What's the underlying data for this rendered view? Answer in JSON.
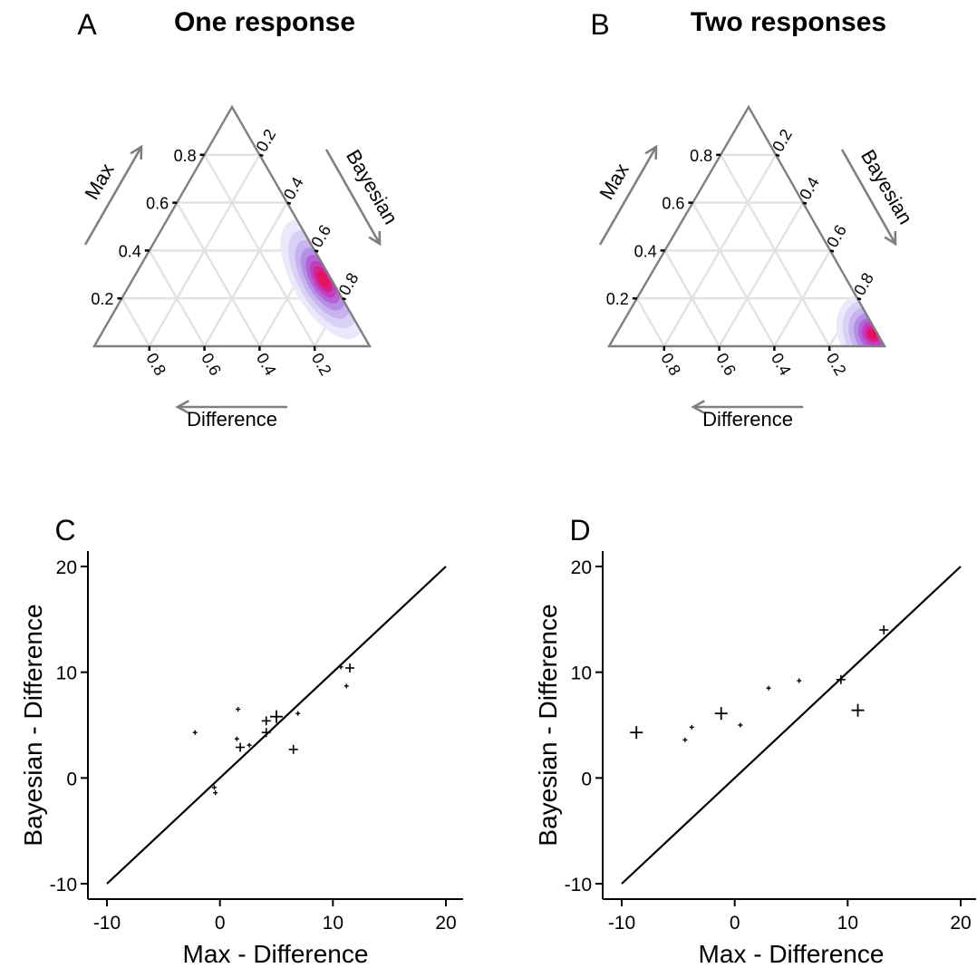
{
  "chart_data": [
    {
      "type": "ternary-density",
      "panel_label": "A",
      "title": "One response",
      "axes": {
        "max": "Max",
        "bayesian": "Bayesian",
        "difference": "Difference"
      },
      "tick_values": [
        0.2,
        0.4,
        0.6,
        0.8
      ],
      "tick_labels": [
        "0.2",
        "0.4",
        "0.6",
        "0.8"
      ],
      "grid": true,
      "density": {
        "peak": {
          "max": 0.28,
          "bayesian": 0.69,
          "difference": 0.03
        },
        "levels": [
          {
            "spread": 0.22,
            "color": "#ece8fb"
          },
          {
            "spread": 0.18,
            "color": "#d9d0f6"
          },
          {
            "spread": 0.145,
            "color": "#c7b4ef"
          },
          {
            "spread": 0.115,
            "color": "#b58fe6"
          },
          {
            "spread": 0.09,
            "color": "#b462d6"
          },
          {
            "spread": 0.068,
            "color": "#c13fbd"
          },
          {
            "spread": 0.048,
            "color": "#d7208f"
          },
          {
            "spread": 0.03,
            "color": "#e6105d"
          }
        ],
        "stretch": 2.2
      }
    },
    {
      "type": "ternary-density",
      "panel_label": "B",
      "title": "Two responses",
      "axes": {
        "max": "Max",
        "bayesian": "Bayesian",
        "difference": "Difference"
      },
      "tick_values": [
        0.2,
        0.4,
        0.6,
        0.8
      ],
      "tick_labels": [
        "0.2",
        "0.4",
        "0.6",
        "0.8"
      ],
      "grid": true,
      "density": {
        "peak": {
          "max": 0.05,
          "bayesian": 0.93,
          "difference": 0.02
        },
        "levels": [
          {
            "spread": 0.24,
            "color": "#ece8fb"
          },
          {
            "spread": 0.2,
            "color": "#d9d0f6"
          },
          {
            "spread": 0.16,
            "color": "#c7b4ef"
          },
          {
            "spread": 0.125,
            "color": "#b58fe6"
          },
          {
            "spread": 0.095,
            "color": "#b462d6"
          },
          {
            "spread": 0.07,
            "color": "#c13fbd"
          },
          {
            "spread": 0.048,
            "color": "#d7208f"
          },
          {
            "spread": 0.028,
            "color": "#e6105d"
          }
        ],
        "stretch": 1.3
      }
    },
    {
      "type": "scatter",
      "panel_label": "C",
      "xlabel": "Max - Difference",
      "ylabel": "Bayesian - Difference",
      "xlim": [
        -11.6,
        21.6
      ],
      "ylim": [
        -11.6,
        21.6
      ],
      "xticks": [
        -10,
        0,
        10,
        20
      ],
      "yticks": [
        -10,
        0,
        10,
        20
      ],
      "tick_labels": [
        "-10",
        "0",
        "10",
        "20"
      ],
      "identity_line": {
        "from": [
          -10,
          -10
        ],
        "to": [
          20,
          20
        ]
      },
      "marker": "+",
      "points": [
        {
          "x": -2.2,
          "y": 4.3,
          "size": "small"
        },
        {
          "x": 1.6,
          "y": 6.5,
          "size": "small"
        },
        {
          "x": 1.5,
          "y": 3.7,
          "size": "small"
        },
        {
          "x": 1.8,
          "y": 2.9,
          "size": "medium"
        },
        {
          "x": 2.6,
          "y": 3.1,
          "size": "small"
        },
        {
          "x": 4.1,
          "y": 5.4,
          "size": "medium"
        },
        {
          "x": 4.1,
          "y": 4.3,
          "size": "medium"
        },
        {
          "x": 5.0,
          "y": 5.8,
          "size": "large"
        },
        {
          "x": 6.9,
          "y": 6.1,
          "size": "small"
        },
        {
          "x": 6.5,
          "y": 2.7,
          "size": "medium"
        },
        {
          "x": -0.5,
          "y": -0.9,
          "size": "small"
        },
        {
          "x": -0.4,
          "y": -1.4,
          "size": "small"
        },
        {
          "x": 10.7,
          "y": 10.5,
          "size": "small"
        },
        {
          "x": 11.5,
          "y": 10.4,
          "size": "medium"
        },
        {
          "x": 11.2,
          "y": 8.7,
          "size": "small"
        }
      ]
    },
    {
      "type": "scatter",
      "panel_label": "D",
      "xlabel": "Max - Difference",
      "ylabel": "Bayesian - Difference",
      "xlim": [
        -11.6,
        21.6
      ],
      "ylim": [
        -11.6,
        21.6
      ],
      "xticks": [
        -10,
        0,
        10,
        20
      ],
      "yticks": [
        -10,
        0,
        10,
        20
      ],
      "tick_labels": [
        "-10",
        "0",
        "10",
        "20"
      ],
      "identity_line": {
        "from": [
          -10,
          -10
        ],
        "to": [
          20,
          20
        ]
      },
      "marker": "+",
      "points": [
        {
          "x": -8.7,
          "y": 4.3,
          "size": "large"
        },
        {
          "x": -4.4,
          "y": 3.6,
          "size": "small"
        },
        {
          "x": -3.8,
          "y": 4.8,
          "size": "small"
        },
        {
          "x": -1.2,
          "y": 6.1,
          "size": "large"
        },
        {
          "x": 0.5,
          "y": 5.0,
          "size": "small"
        },
        {
          "x": 3.0,
          "y": 8.5,
          "size": "small"
        },
        {
          "x": 5.7,
          "y": 9.2,
          "size": "small"
        },
        {
          "x": 9.4,
          "y": 9.3,
          "size": "medium"
        },
        {
          "x": 10.9,
          "y": 6.4,
          "size": "large"
        },
        {
          "x": 13.2,
          "y": 14.0,
          "size": "medium"
        }
      ]
    }
  ],
  "colors": {
    "grid": "#e2e2e2",
    "triangle": "#7f7f7f",
    "axis_arrow": "#808080",
    "line": "#000000"
  }
}
